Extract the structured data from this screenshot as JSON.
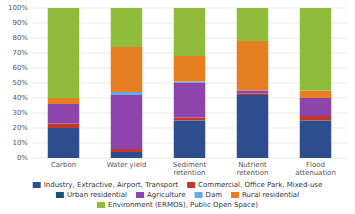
{
  "chart_data": {
    "type": "bar",
    "stacked": true,
    "grid": true,
    "legend": "bottom",
    "categories": [
      "Carbon",
      "Water yield",
      "Sediment retention",
      "Nutrient retention",
      "Flood attenuation"
    ],
    "series": [
      {
        "name": "Industry, Extractive, Airport, Transport",
        "color": "#2e4d8e",
        "values": [
          0.2,
          0.04,
          0.25,
          0.42,
          0.25
        ]
      },
      {
        "name": "Commercial, Office Park, Mixed-use",
        "color": "#c0392b",
        "values": [
          0.03,
          0.02,
          0.02,
          0.01,
          0.03
        ]
      },
      {
        "name": "Urban residential",
        "color": "#1a5276",
        "values": [
          0.0,
          0.0,
          0.0,
          0.0,
          0.0
        ]
      },
      {
        "name": "Agriculture",
        "color": "#8e44ad",
        "values": [
          0.13,
          0.36,
          0.23,
          0.02,
          0.12
        ]
      },
      {
        "name": "Dam",
        "color": "#5dade2",
        "values": [
          0.0,
          0.02,
          0.01,
          0.0,
          0.0
        ]
      },
      {
        "name": "Rural residential",
        "color": "#e67e22",
        "values": [
          0.04,
          0.3,
          0.17,
          0.33,
          0.05
        ]
      },
      {
        "name": "Environment (ERMOS), Public Open Space)",
        "color": "#8fbc3b",
        "values": [
          0.6,
          0.26,
          0.32,
          0.22,
          0.55
        ]
      }
    ],
    "ylim": [
      0,
      1.0
    ],
    "yticks": [
      {
        "value": 0,
        "label": "0%"
      },
      {
        "value": 0.1,
        "label": "10%"
      },
      {
        "value": 0.2,
        "label": "20%"
      },
      {
        "value": 0.3,
        "label": "30%"
      },
      {
        "value": 0.4,
        "label": "40%"
      },
      {
        "value": 0.5,
        "label": "50%"
      },
      {
        "value": 0.6,
        "label": "60%"
      },
      {
        "value": 0.7,
        "label": "70%"
      },
      {
        "value": 0.8,
        "label": "80%"
      },
      {
        "value": 0.9,
        "label": "90%"
      },
      {
        "value": 1.0,
        "label": "100%"
      }
    ]
  }
}
